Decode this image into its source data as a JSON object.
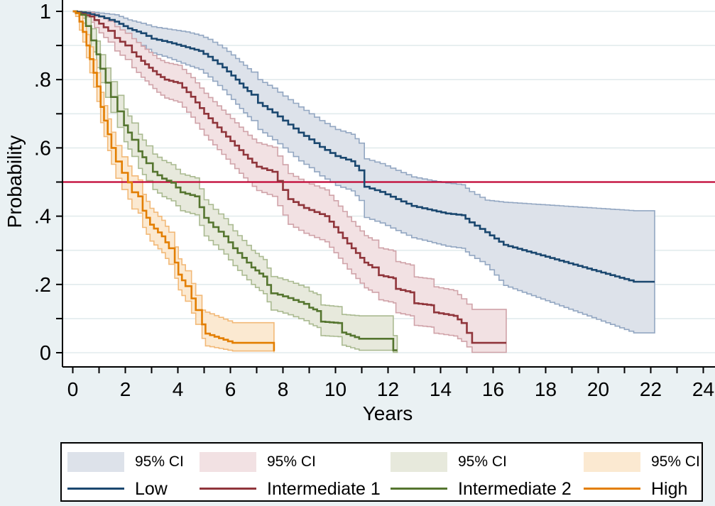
{
  "figure": {
    "background_color": "#eaf1f3",
    "plot_background_color": "#ffffff",
    "grid_color": "#e2ebed",
    "axis_color": "#000000",
    "text_color": "#000000"
  },
  "axes": {
    "x": {
      "label": "Years",
      "min": 0,
      "max": 24,
      "major_tick_labels": [
        "0",
        "2",
        "4",
        "6",
        "8",
        "10",
        "12",
        "14",
        "16",
        "18",
        "20",
        "22",
        "24"
      ],
      "major_tick_values": [
        0,
        2,
        4,
        6,
        8,
        10,
        12,
        14,
        16,
        18,
        20,
        22,
        24
      ],
      "minor_tick_values": [
        1,
        3,
        5,
        7,
        9,
        11,
        13,
        15,
        17,
        19,
        21,
        23
      ]
    },
    "y": {
      "label": "Probability",
      "min": 0,
      "max": 1,
      "major_tick_labels": [
        "0",
        ".2",
        ".4",
        ".6",
        ".8",
        "1"
      ],
      "major_tick_values": [
        0,
        0.2,
        0.4,
        0.6,
        0.8,
        1
      ],
      "minor_tick_values": [
        0.1,
        0.3,
        0.5,
        0.7,
        0.9
      ],
      "gridline_values": [
        0,
        0.1,
        0.2,
        0.3,
        0.4,
        0.5,
        0.6,
        0.7,
        0.8,
        0.9,
        1
      ]
    }
  },
  "reference_line": {
    "y": 0.5,
    "color": "#c10534"
  },
  "legend": {
    "ci_label": "95% CI",
    "entries": [
      {
        "label": "Low"
      },
      {
        "label": "Intermediate 1"
      },
      {
        "label": "Intermediate 2"
      },
      {
        "label": "High"
      }
    ]
  },
  "chart_data": {
    "type": "line",
    "subtype": "kaplan-meier-step",
    "title": "",
    "xlabel": "Years",
    "ylabel": "Probability",
    "xlim": [
      0,
      24
    ],
    "ylim": [
      0,
      1
    ],
    "grid": true,
    "legend_position": "bottom",
    "series": [
      {
        "name": "Low",
        "color": "#1a476f",
        "band_color": "#dde2ea",
        "band_edge_color": "#93a7c2",
        "t": [
          0,
          0.5,
          1,
          1.6,
          2.1,
          2.6,
          3,
          3.6,
          4.3,
          4.8,
          5.15,
          5.7,
          6.2,
          6.5,
          6.8,
          7.05,
          7.6,
          8,
          8.6,
          9,
          9.4,
          10,
          10.6,
          10.9,
          11.1,
          11.7,
          12.3,
          12.9,
          13.5,
          14.2,
          14.8,
          15.1,
          15.7,
          16.4,
          21.35,
          22.15
        ],
        "p": [
          1,
          0.995,
          0.985,
          0.97,
          0.95,
          0.936,
          0.92,
          0.91,
          0.895,
          0.884,
          0.867,
          0.836,
          0.8,
          0.777,
          0.756,
          0.732,
          0.704,
          0.68,
          0.645,
          0.625,
          0.603,
          0.576,
          0.561,
          0.534,
          0.486,
          0.471,
          0.45,
          0.43,
          0.42,
          0.408,
          0.403,
          0.382,
          0.353,
          0.316,
          0.208,
          0.208
        ],
        "hi": [
          1,
          1,
          0.995,
          0.99,
          0.975,
          0.965,
          0.955,
          0.948,
          0.94,
          0.93,
          0.918,
          0.893,
          0.862,
          0.842,
          0.822,
          0.8,
          0.775,
          0.752,
          0.72,
          0.7,
          0.68,
          0.654,
          0.64,
          0.614,
          0.568,
          0.554,
          0.534,
          0.515,
          0.506,
          0.497,
          0.492,
          0.472,
          0.447,
          0.441,
          0.416,
          0.416
        ],
        "lo": [
          1,
          0.985,
          0.968,
          0.944,
          0.918,
          0.9,
          0.878,
          0.864,
          0.843,
          0.83,
          0.808,
          0.77,
          0.728,
          0.703,
          0.68,
          0.654,
          0.624,
          0.6,
          0.562,
          0.542,
          0.518,
          0.49,
          0.474,
          0.446,
          0.396,
          0.38,
          0.358,
          0.337,
          0.326,
          0.312,
          0.306,
          0.285,
          0.258,
          0.197,
          0.058,
          0.058
        ]
      },
      {
        "name": "Intermediate 1",
        "color": "#90353b",
        "band_color": "#f2e1e3",
        "band_edge_color": "#d0a3a9",
        "t": [
          0,
          0.65,
          1,
          1.35,
          1.6,
          2,
          2.25,
          2.6,
          2.9,
          3.2,
          3.5,
          4,
          4.5,
          5,
          5.5,
          6,
          6.5,
          7,
          7.6,
          8.2,
          8.8,
          9.6,
          10.45,
          11.1,
          11.4,
          11.65,
          12.2,
          12.3,
          12.85,
          13,
          13.65,
          13.75,
          14.5,
          14.8,
          15.2,
          16.5
        ],
        "p": [
          1,
          0.985,
          0.964,
          0.943,
          0.922,
          0.9,
          0.88,
          0.855,
          0.835,
          0.815,
          0.8,
          0.79,
          0.75,
          0.7,
          0.66,
          0.62,
          0.58,
          0.545,
          0.53,
          0.45,
          0.424,
          0.4,
          0.32,
          0.264,
          0.25,
          0.227,
          0.218,
          0.187,
          0.177,
          0.145,
          0.139,
          0.118,
          0.108,
          0.087,
          0.029,
          0.029
        ],
        "hi": [
          1,
          0.997,
          0.986,
          0.971,
          0.955,
          0.936,
          0.92,
          0.898,
          0.88,
          0.862,
          0.85,
          0.842,
          0.806,
          0.76,
          0.723,
          0.686,
          0.648,
          0.615,
          0.602,
          0.525,
          0.5,
          0.477,
          0.398,
          0.343,
          0.33,
          0.307,
          0.298,
          0.267,
          0.257,
          0.222,
          0.216,
          0.193,
          0.182,
          0.158,
          0.127,
          0.127
        ],
        "lo": [
          1,
          0.968,
          0.937,
          0.91,
          0.884,
          0.859,
          0.835,
          0.807,
          0.785,
          0.763,
          0.746,
          0.734,
          0.69,
          0.637,
          0.595,
          0.553,
          0.512,
          0.475,
          0.458,
          0.376,
          0.35,
          0.325,
          0.245,
          0.19,
          0.177,
          0.155,
          0.146,
          0.117,
          0.108,
          0.08,
          0.075,
          0.057,
          0.049,
          0.033,
          0.001,
          0.001
        ]
      },
      {
        "name": "Intermediate 2",
        "color": "#55752f",
        "band_color": "#e7e9dc",
        "band_edge_color": "#aaba91",
        "t": [
          0,
          0.3,
          0.5,
          0.7,
          0.9,
          1.05,
          1.25,
          1.45,
          1.7,
          1.95,
          2.25,
          2.5,
          2.8,
          3.05,
          3.4,
          3.75,
          4.1,
          4.65,
          5,
          5.35,
          5.75,
          6.1,
          6.45,
          6.8,
          7.25,
          7.55,
          7.8,
          8.2,
          8.8,
          9,
          9.3,
          9.45,
          10.1,
          10.25,
          10.9,
          12.05,
          12.2,
          12.35
        ],
        "p": [
          1,
          0.99,
          0.957,
          0.915,
          0.874,
          0.832,
          0.791,
          0.749,
          0.707,
          0.666,
          0.624,
          0.59,
          0.555,
          0.53,
          0.51,
          0.498,
          0.47,
          0.458,
          0.395,
          0.368,
          0.341,
          0.306,
          0.278,
          0.25,
          0.223,
          0.174,
          0.17,
          0.16,
          0.143,
          0.132,
          0.122,
          0.091,
          0.087,
          0.059,
          0.041,
          0.041,
          0.007,
          0.007
        ],
        "hi": [
          1,
          1,
          0.984,
          0.949,
          0.913,
          0.873,
          0.834,
          0.794,
          0.754,
          0.714,
          0.673,
          0.64,
          0.606,
          0.582,
          0.563,
          0.551,
          0.524,
          0.512,
          0.448,
          0.42,
          0.393,
          0.357,
          0.329,
          0.3,
          0.273,
          0.223,
          0.219,
          0.209,
          0.192,
          0.18,
          0.17,
          0.14,
          0.135,
          0.112,
          0.108,
          0.108,
          0.05,
          0.05
        ],
        "lo": [
          1,
          0.98,
          0.93,
          0.881,
          0.835,
          0.791,
          0.748,
          0.704,
          0.66,
          0.618,
          0.575,
          0.54,
          0.504,
          0.478,
          0.457,
          0.445,
          0.416,
          0.404,
          0.342,
          0.316,
          0.289,
          0.255,
          0.227,
          0.2,
          0.173,
          0.125,
          0.121,
          0.111,
          0.094,
          0.084,
          0.074,
          0.05,
          0.047,
          0.022,
          0.007,
          0.007,
          0.001,
          0.001
        ]
      },
      {
        "name": "High",
        "color": "#e37e00",
        "band_color": "#fbe9d1",
        "band_edge_color": "#f2b978",
        "t": [
          0,
          0.11,
          0.25,
          0.38,
          0.52,
          0.65,
          0.79,
          0.92,
          1.06,
          1.19,
          1.33,
          1.47,
          1.64,
          1.87,
          2.1,
          2.25,
          2.49,
          2.66,
          2.94,
          3.39,
          3.66,
          3.88,
          4.02,
          4.29,
          4.52,
          4.68,
          4.92,
          5.05,
          6.08,
          7.55,
          7.66
        ],
        "p": [
          1,
          0.995,
          0.97,
          0.94,
          0.9,
          0.86,
          0.82,
          0.78,
          0.72,
          0.68,
          0.64,
          0.6,
          0.56,
          0.527,
          0.499,
          0.47,
          0.458,
          0.416,
          0.375,
          0.341,
          0.306,
          0.264,
          0.229,
          0.195,
          0.159,
          0.125,
          0.083,
          0.056,
          0.029,
          0.029,
          0.005
        ],
        "hi": [
          1,
          1,
          0.99,
          0.966,
          0.932,
          0.896,
          0.858,
          0.82,
          0.763,
          0.724,
          0.685,
          0.646,
          0.607,
          0.574,
          0.547,
          0.518,
          0.506,
          0.464,
          0.423,
          0.388,
          0.353,
          0.31,
          0.275,
          0.24,
          0.203,
          0.168,
          0.125,
          0.119,
          0.088,
          0.088,
          0.06
        ],
        "lo": [
          1,
          0.985,
          0.945,
          0.91,
          0.864,
          0.82,
          0.778,
          0.736,
          0.674,
          0.633,
          0.592,
          0.552,
          0.511,
          0.478,
          0.45,
          0.421,
          0.409,
          0.367,
          0.327,
          0.293,
          0.259,
          0.218,
          0.184,
          0.151,
          0.116,
          0.083,
          0.042,
          0.02,
          0.005,
          0.005,
          0.001
        ]
      }
    ]
  }
}
